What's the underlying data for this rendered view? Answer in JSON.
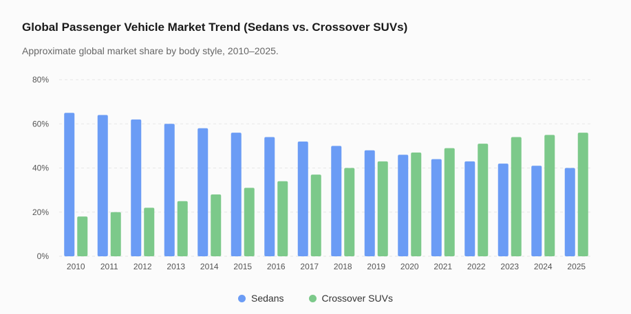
{
  "chart_data": {
    "type": "bar",
    "title": "Global Passenger Vehicle Market Trend (Sedans vs. Crossover SUVs)",
    "subtitle": "Approximate global market share by body style, 2010–2025.",
    "categories": [
      "2010",
      "2011",
      "2012",
      "2013",
      "2014",
      "2015",
      "2016",
      "2017",
      "2018",
      "2019",
      "2020",
      "2021",
      "2022",
      "2023",
      "2024",
      "2025"
    ],
    "series": [
      {
        "name": "Sedans",
        "color": "#6b9cf5",
        "values": [
          65,
          64,
          62,
          60,
          58,
          56,
          54,
          52,
          50,
          48,
          46,
          44,
          43,
          42,
          41,
          40
        ]
      },
      {
        "name": "Crossover SUVs",
        "color": "#7cc98a",
        "values": [
          18,
          20,
          22,
          25,
          28,
          31,
          34,
          37,
          40,
          43,
          47,
          49,
          51,
          54,
          55,
          56
        ]
      }
    ],
    "ylim": [
      0,
      80
    ],
    "yticks": [
      "0%",
      "20%",
      "40%",
      "60%",
      "80%"
    ],
    "xlabel": "",
    "ylabel": "",
    "grid": true,
    "legend_position": "bottom"
  }
}
